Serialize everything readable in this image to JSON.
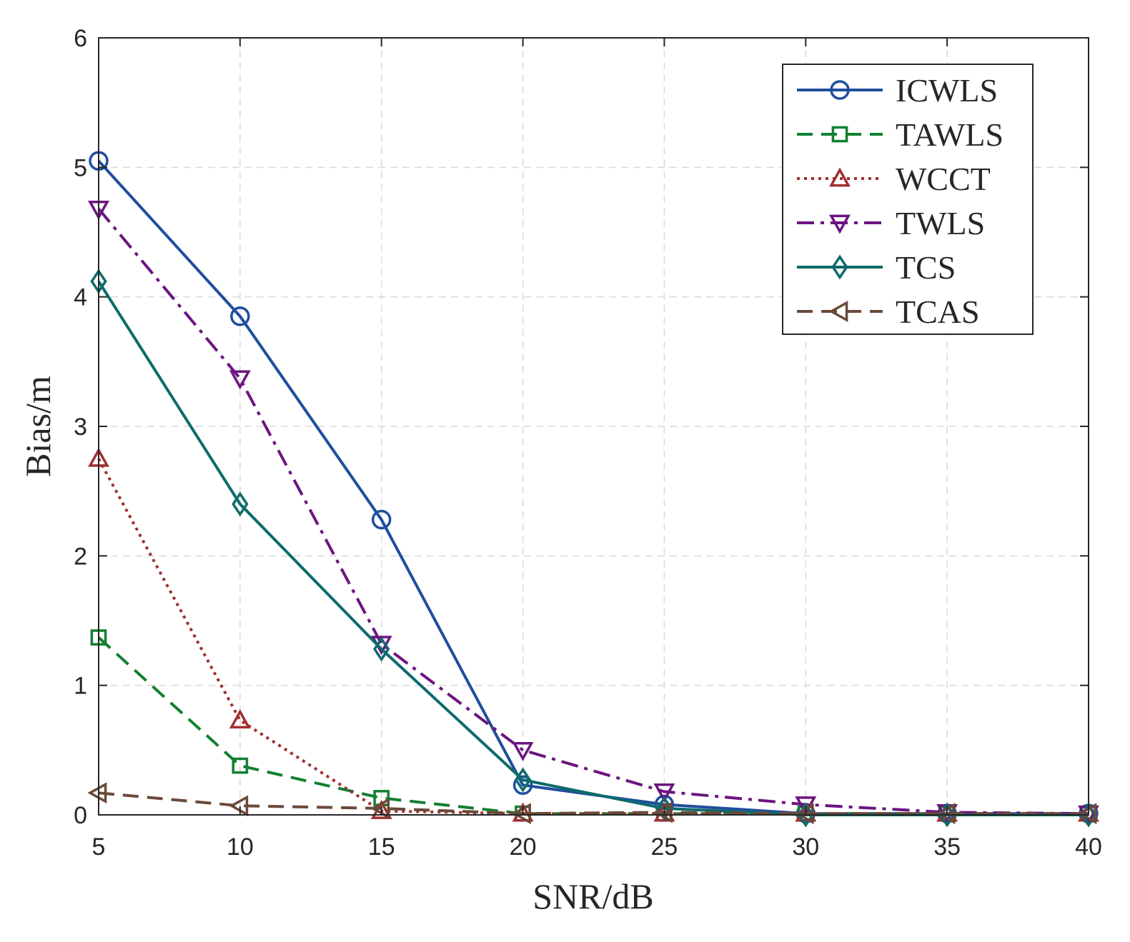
{
  "chart_data": {
    "type": "line",
    "title": "",
    "xlabel": "SNR/dB",
    "ylabel": "Bias/m",
    "x": [
      5,
      10,
      15,
      20,
      25,
      30,
      35,
      40
    ],
    "xlim": [
      5,
      40
    ],
    "ylim": [
      0,
      6
    ],
    "xticks": [
      "5",
      "10",
      "15",
      "20",
      "25",
      "30",
      "35",
      "40"
    ],
    "yticks": [
      "0",
      "1",
      "2",
      "3",
      "4",
      "5",
      "6"
    ],
    "grid": true,
    "legend_position": "top-right",
    "series": [
      {
        "name": "ICWLS",
        "color": "#1f4e9c",
        "dash": "solid",
        "marker": "circle",
        "values": [
          5.05,
          3.85,
          2.28,
          0.23,
          0.08,
          0.01,
          0.01,
          0.01
        ]
      },
      {
        "name": "TAWLS",
        "color": "#118031",
        "dash": "dashed",
        "marker": "square",
        "values": [
          1.37,
          0.38,
          0.13,
          0.01,
          0.01,
          0.01,
          0.01,
          0.01
        ]
      },
      {
        "name": "WCCT",
        "color": "#a03030",
        "dash": "dotted",
        "marker": "triangle-up",
        "values": [
          2.75,
          0.73,
          0.03,
          0.01,
          0.01,
          0.01,
          0.01,
          0.01
        ]
      },
      {
        "name": "TWLS",
        "color": "#6b1580",
        "dash": "dashdot",
        "marker": "triangle-down",
        "values": [
          4.68,
          3.37,
          1.32,
          0.5,
          0.18,
          0.08,
          0.02,
          0.01
        ]
      },
      {
        "name": "TCS",
        "color": "#0e6b6b",
        "dash": "solid",
        "marker": "diamond",
        "values": [
          4.12,
          2.4,
          1.28,
          0.27,
          0.05,
          0.0,
          0.0,
          0.0
        ]
      },
      {
        "name": "TCAS",
        "color": "#6b4a3a",
        "dash": "dashed",
        "marker": "triangle-left",
        "values": [
          0.17,
          0.07,
          0.05,
          0.01,
          0.02,
          0.01,
          0.01,
          0.01
        ]
      }
    ]
  }
}
